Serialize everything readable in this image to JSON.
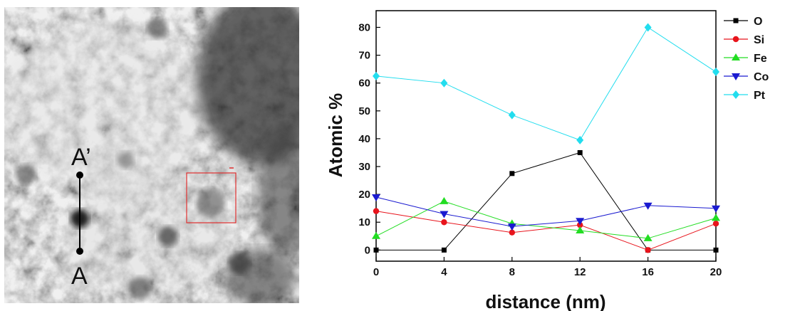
{
  "micrograph": {
    "marker_top": "A’",
    "marker_bottom": "A",
    "box_color": "#e03030"
  },
  "chart_data": {
    "type": "line",
    "x": [
      0,
      4,
      8,
      12,
      16,
      20
    ],
    "xlabel": "distance (nm)",
    "ylabel": "Atomic %",
    "xlim": [
      0,
      20
    ],
    "ylim": [
      -4,
      86
    ],
    "xticks": [
      0,
      4,
      8,
      12,
      16,
      20
    ],
    "yticks": [
      0,
      10,
      20,
      30,
      40,
      50,
      60,
      70,
      80
    ],
    "grid": false,
    "legend_position": "right",
    "series": [
      {
        "name": "O",
        "color": "#000000",
        "marker": "square",
        "values": [
          0,
          0,
          27.5,
          35,
          0,
          0
        ]
      },
      {
        "name": "Si",
        "color": "#e8141c",
        "marker": "circle",
        "values": [
          14,
          10,
          6.3,
          9,
          0,
          9.5
        ]
      },
      {
        "name": "Fe",
        "color": "#22dd22",
        "marker": "triangle-up",
        "values": [
          5,
          17.5,
          9.5,
          7,
          4.2,
          11.5
        ]
      },
      {
        "name": "Co",
        "color": "#1a1ad0",
        "marker": "triangle-down",
        "values": [
          19,
          13,
          8.5,
          10.5,
          16,
          15
        ]
      },
      {
        "name": "Pt",
        "color": "#22ddee",
        "marker": "diamond",
        "values": [
          62.5,
          60,
          48.5,
          39.5,
          80,
          64
        ]
      }
    ]
  }
}
